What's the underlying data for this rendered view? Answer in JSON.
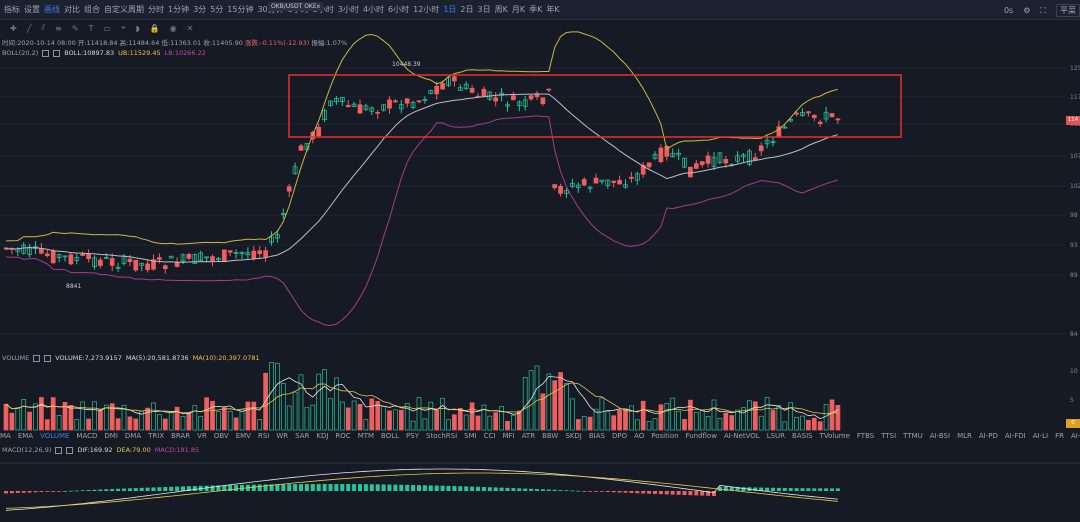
{
  "topbar": {
    "items": [
      "指标",
      "设置",
      "画线",
      "对比",
      "组合",
      "自定义周期",
      "分时",
      "1分钟",
      "3分",
      "5分",
      "15分钟",
      "30分钟",
      "1小时",
      "2小时",
      "3小时",
      "4小时",
      "6小时",
      "12小时",
      "1日",
      "2日",
      "3日",
      "周K",
      "月K",
      "季K",
      "年K"
    ],
    "active": [
      "画线",
      "1日"
    ],
    "pair_tip": "OKB/USDT OKEx",
    "right": {
      "timer": "0s",
      "button": "平菜"
    }
  },
  "ohlc": {
    "time": "时间:2020-10-14 08:00",
    "open": "开:11418.84",
    "high": "高:11484.64",
    "low": "低:11363.01",
    "close": "收:11405.90",
    "change": "涨跌:-0.11%(-12.93)",
    "amplitude": "振幅:1.07%"
  },
  "boll": {
    "label": "BOLL(20,2)",
    "mid": "BOLL:10897.83",
    "ub": "UB:11529.45",
    "lb": "LB:10266.22"
  },
  "annotations": {
    "high": "10448.39",
    "low": "8841"
  },
  "y_axis": [
    "125",
    "117",
    "112",
    "107",
    "102",
    "98",
    "93",
    "89",
    "84"
  ],
  "price_tag": "114",
  "volume": {
    "label": "VOLUME",
    "value": "VOLUME:7,273.9157",
    "ma5": "MA(5):20,581.8736",
    "ma10": "MA(10):20,397.0781",
    "axis": [
      "10",
      "5"
    ],
    "tag": "0"
  },
  "tabs": [
    "MA",
    "EMA",
    "VOLUME",
    "MACD",
    "DMI",
    "DMA",
    "TRIX",
    "BRAR",
    "VR",
    "OBV",
    "EMV",
    "RSI",
    "WR",
    "SAR",
    "KDJ",
    "ROC",
    "MTM",
    "BOLL",
    "PSY",
    "StochRSI",
    "SMI",
    "CCI",
    "MFI",
    "ATR",
    "BBW",
    "SKDJ",
    "BIAS",
    "DPO",
    "AO",
    "Position",
    "Fundflow",
    "AI-NetVOL",
    "LSUR",
    "BASIS",
    "TVolume",
    "FTBS",
    "TTSI",
    "TTMU",
    "AI-BSI",
    "MLR",
    "AI-PD",
    "AI-FDI",
    "AI-LI",
    "FR",
    "AI-BST"
  ],
  "active_tab": "VOLUME",
  "macd": {
    "label": "MACD(12,26,9)",
    "dif": "DIF:169.92",
    "dea": "DEA:79.00",
    "macd": "MACD:181.85"
  },
  "colors": {
    "up": "#26c69a",
    "down": "#ef5f5f",
    "boll_ub": "#c9b93a",
    "boll_mid": "#b9bec8",
    "boll_lb": "#a63c8c",
    "highlight_box": "#e8302f",
    "accent": "#3f7cf0"
  }
}
